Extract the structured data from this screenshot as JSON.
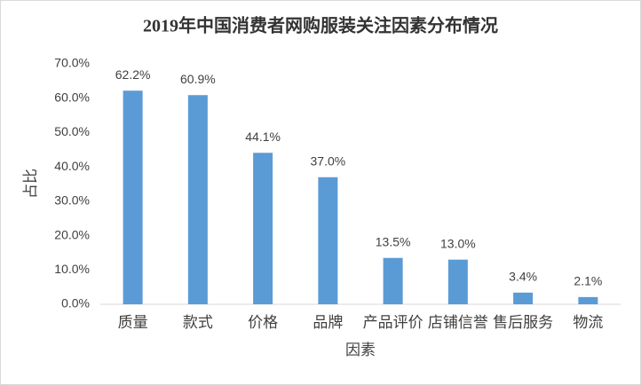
{
  "chart_data": {
    "type": "bar",
    "title": "2019年中国消费者网购服装关注因素分布情况",
    "x_label": "因素",
    "y_label": "占比",
    "categories": [
      "质量",
      "款式",
      "价格",
      "品牌",
      "产品评价",
      "店铺信誉",
      "售后服务",
      "物流"
    ],
    "values": [
      62.2,
      60.9,
      44.1,
      37.0,
      13.5,
      13.0,
      3.4,
      2.1
    ],
    "value_labels": [
      "62.2%",
      "60.9%",
      "44.1%",
      "37.0%",
      "13.5%",
      "13.0%",
      "3.4%",
      "2.1%"
    ],
    "color": "#5b9bd5",
    "ylim": [
      0,
      70
    ],
    "yticks": [
      {
        "value": 0,
        "label": "0.0%"
      },
      {
        "value": 10,
        "label": "10.0%"
      },
      {
        "value": 20,
        "label": "20.0%"
      },
      {
        "value": 30,
        "label": "30.0%"
      },
      {
        "value": 40,
        "label": "40.0%"
      },
      {
        "value": 50,
        "label": "50.0%"
      },
      {
        "value": 60,
        "label": "60.0%"
      },
      {
        "value": 70,
        "label": "70.0%"
      }
    ],
    "grid": false
  }
}
